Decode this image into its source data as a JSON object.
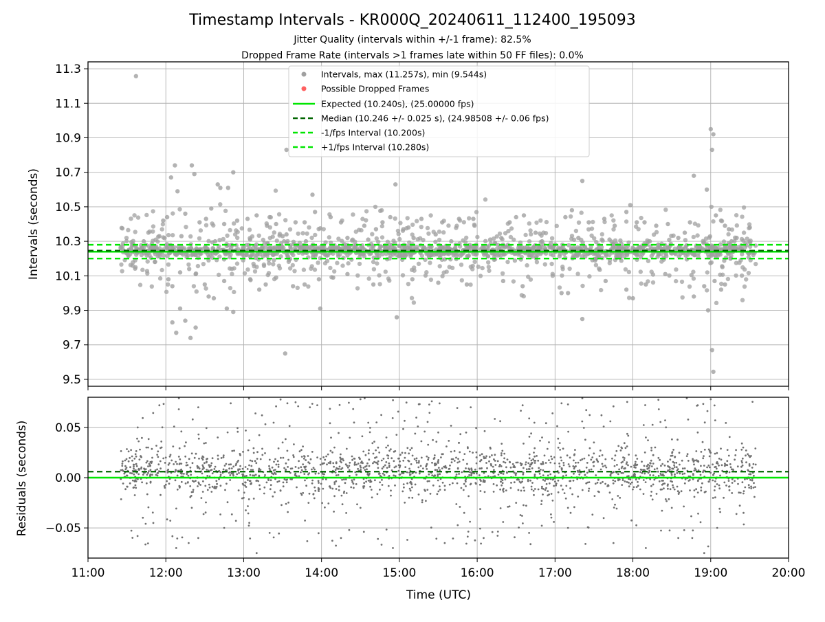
{
  "chart_data": [
    {
      "type": "scatter",
      "title": "Timestamp Intervals - KR000Q_20240611_112400_195093",
      "subtitle_lines": [
        "Jitter Quality (intervals within +/-1 frame): 82.5%",
        "Dropped Frame Rate (intervals >1 frames late within 50 FF files): 0.0%"
      ],
      "xlabel": "",
      "ylabel": "Intervals (seconds)",
      "x_axis": {
        "min": "11:00",
        "max": "20:00",
        "ticks": [
          "11:00",
          "12:00",
          "13:00",
          "14:00",
          "15:00",
          "16:00",
          "17:00",
          "18:00",
          "19:00",
          "20:00"
        ]
      },
      "ylim": [
        9.46,
        11.34
      ],
      "yticks": [
        "9.5",
        "9.7",
        "9.9",
        "10.1",
        "10.3",
        "10.5",
        "10.7",
        "10.9",
        "11.1",
        "11.3"
      ],
      "grid": true,
      "legend_position": "top-center",
      "legend": [
        {
          "label": "Intervals, max (11.257s), min (9.544s)",
          "kind": "marker",
          "color": "#a0a0a0"
        },
        {
          "label": "Possible Dropped Frames",
          "kind": "marker",
          "color": "#ff6060"
        },
        {
          "label": "Expected (10.240s), (25.00000 fps)",
          "kind": "solid",
          "color": "#00e600"
        },
        {
          "label": "Median (10.246 +/- 0.025 s), (24.98508 +/- 0.06 fps)",
          "kind": "dashed",
          "color": "#006400"
        },
        {
          "label": "-1/fps Interval (10.200s)",
          "kind": "dashed",
          "color": "#00e600"
        },
        {
          "label": "+1/fps Interval (10.280s)",
          "kind": "dashed",
          "color": "#00e600"
        }
      ],
      "reference_lines": {
        "expected": 10.24,
        "median": 10.246,
        "minus_one_fps": 10.2,
        "plus_one_fps": 10.28
      },
      "series": [
        {
          "name": "Intervals, max (11.257s), min (9.544s)",
          "color": "#a0a0a0",
          "points": [
            [
              "11:37",
              11.257
            ],
            [
              "12:04",
              10.67
            ],
            [
              "12:07",
              10.74
            ],
            [
              "12:09",
              10.59
            ],
            [
              "12:15",
              10.46
            ],
            [
              "12:20",
              10.74
            ],
            [
              "12:22",
              10.69
            ],
            [
              "12:35",
              10.49
            ],
            [
              "12:40",
              10.63
            ],
            [
              "12:42",
              10.61
            ],
            [
              "12:48",
              10.61
            ],
            [
              "12:52",
              10.7
            ],
            [
              "12:31",
              10.43
            ],
            [
              "12:26",
              10.41
            ],
            [
              "12:01",
              10.44
            ],
            [
              "11:58",
              10.42
            ],
            [
              "12:45",
              10.4
            ],
            [
              "12:55",
              10.42
            ],
            [
              "13:03",
              10.43
            ],
            [
              "13:10",
              10.45
            ],
            [
              "13:20",
              10.44
            ],
            [
              "13:18",
              10.39
            ],
            [
              "13:25",
              10.4
            ],
            [
              "13:33",
              10.34
            ],
            [
              "13:40",
              10.41
            ],
            [
              "13:47",
              10.41
            ],
            [
              "13:55",
              10.47
            ],
            [
              "13:53",
              10.57
            ],
            [
              "14:07",
              10.44
            ],
            [
              "14:15",
              10.41
            ],
            [
              "14:33",
              10.39
            ],
            [
              "14:42",
              10.37
            ],
            [
              "14:47",
              10.41
            ],
            [
              "14:53",
              10.44
            ],
            [
              "14:57",
              10.63
            ],
            [
              "15:07",
              10.38
            ],
            [
              "15:17",
              10.43
            ],
            [
              "15:28",
              10.34
            ],
            [
              "15:33",
              10.41
            ],
            [
              "15:46",
              10.43
            ],
            [
              "15:57",
              10.43
            ],
            [
              "16:25",
              10.41
            ],
            [
              "16:30",
              10.44
            ],
            [
              "16:36",
              10.45
            ],
            [
              "16:45",
              10.35
            ],
            [
              "17:08",
              10.44
            ],
            [
              "17:13",
              10.48
            ],
            [
              "17:21",
              10.65
            ],
            [
              "17:26",
              10.41
            ],
            [
              "17:38",
              10.43
            ],
            [
              "17:46",
              10.39
            ],
            [
              "17:55",
              10.47
            ],
            [
              "17:58",
              10.51
            ],
            [
              "18:03",
              10.41
            ],
            [
              "18:09",
              10.41
            ],
            [
              "18:18",
              10.39
            ],
            [
              "18:27",
              10.4
            ],
            [
              "18:40",
              10.35
            ],
            [
              "18:44",
              10.41
            ],
            [
              "18:47",
              10.68
            ],
            [
              "18:57",
              10.6
            ],
            [
              "19:00",
              10.95
            ],
            [
              "19:02",
              10.92
            ],
            [
              "19:01",
              10.83
            ],
            [
              "19:04",
              10.45
            ],
            [
              "19:08",
              10.42
            ],
            [
              "19:11",
              10.39
            ],
            [
              "19:14",
              10.37
            ],
            [
              "19:20",
              10.32
            ],
            [
              "11:43",
              10.3
            ],
            [
              "11:55",
              10.33
            ],
            [
              "12:12",
              10.33
            ],
            [
              "12:38",
              10.3
            ],
            [
              "13:05",
              10.31
            ],
            [
              "13:30",
              10.33
            ],
            [
              "13:48",
              10.3
            ],
            [
              "14:20",
              10.32
            ],
            [
              "14:36",
              10.31
            ],
            [
              "15:11",
              10.32
            ],
            [
              "15:40",
              10.3
            ],
            [
              "16:10",
              10.31
            ],
            [
              "16:50",
              10.3
            ],
            [
              "17:18",
              10.32
            ],
            [
              "17:42",
              10.31
            ],
            [
              "18:13",
              10.3
            ],
            [
              "18:35",
              10.32
            ],
            [
              "19:16",
              10.3
            ],
            [
              "12:02",
              10.08
            ],
            [
              "12:05",
              10.04
            ],
            [
              "12:11",
              10.12
            ],
            [
              "12:18",
              10.14
            ],
            [
              "12:23",
              10.11
            ],
            [
              "12:30",
              10.05
            ],
            [
              "12:33",
              9.98
            ],
            [
              "12:37",
              9.97
            ],
            [
              "12:45",
              10.07
            ],
            [
              "12:52",
              9.89
            ],
            [
              "12:47",
              9.91
            ],
            [
              "13:05",
              10.08
            ],
            [
              "13:12",
              10.02
            ],
            [
              "13:17",
              10.05
            ],
            [
              "13:25",
              10.09
            ],
            [
              "13:38",
              10.04
            ],
            [
              "13:47",
              10.05
            ],
            [
              "13:58",
              10.08
            ],
            [
              "14:09",
              10.09
            ],
            [
              "14:20",
              10.11
            ],
            [
              "14:40",
              10.05
            ],
            [
              "15:10",
              10.08
            ],
            [
              "15:30",
              10.06
            ],
            [
              "15:52",
              10.05
            ],
            [
              "16:20",
              10.07
            ],
            [
              "16:35",
              10.04
            ],
            [
              "17:05",
              10.0
            ],
            [
              "17:10",
              10.0
            ],
            [
              "17:39",
              10.07
            ],
            [
              "17:55",
              10.02
            ],
            [
              "18:00",
              9.97
            ],
            [
              "18:10",
              10.05
            ],
            [
              "18:25",
              10.11
            ],
            [
              "18:47",
              9.98
            ],
            [
              "18:55",
              10.04
            ],
            [
              "19:03",
              10.07
            ],
            [
              "19:08",
              10.02
            ],
            [
              "19:11",
              10.05
            ],
            [
              "12:05",
              9.83
            ],
            [
              "12:11",
              9.91
            ],
            [
              "12:15",
              9.84
            ],
            [
              "12:19",
              9.74
            ],
            [
              "12:23",
              9.8
            ],
            [
              "12:08",
              9.77
            ],
            [
              "13:59",
              9.91
            ],
            [
              "14:58",
              9.86
            ],
            [
              "17:21",
              9.85
            ],
            [
              "18:58",
              9.9
            ],
            [
              "19:01",
              9.67
            ],
            [
              "19:02",
              9.544
            ],
            [
              "13:32",
              9.65
            ],
            [
              "13:33",
              10.83
            ]
          ],
          "dense_band": {
            "x_start": "11:25",
            "x_end": "19:35",
            "y_center": 10.246,
            "y_spread": 0.035
          }
        }
      ]
    },
    {
      "type": "scatter",
      "title": "",
      "xlabel": "Time (UTC)",
      "ylabel": "Residuals (seconds)",
      "x_axis": {
        "min": "11:00",
        "max": "20:00",
        "ticks": [
          "11:00",
          "12:00",
          "13:00",
          "14:00",
          "15:00",
          "16:00",
          "17:00",
          "18:00",
          "19:00",
          "20:00"
        ]
      },
      "ylim": [
        -0.08,
        0.08
      ],
      "yticks": [
        "−0.05",
        "0.00",
        "0.05"
      ],
      "grid": true,
      "reference_lines": {
        "expected": 0.0,
        "median": 0.006
      },
      "series": [
        {
          "name": "",
          "color": "#707070",
          "points": [
            [
              "11:55",
              0.072
            ],
            [
              "12:10",
              0.068
            ],
            [
              "12:25",
              0.07
            ],
            [
              "12:50",
              0.074
            ],
            [
              "13:25",
              0.071
            ],
            [
              "13:40",
              0.075
            ],
            [
              "14:30",
              0.078
            ],
            [
              "15:15",
              0.073
            ],
            [
              "15:25",
              0.076
            ],
            [
              "15:55",
              0.07
            ],
            [
              "16:35",
              0.072
            ],
            [
              "17:05",
              0.074
            ],
            [
              "17:45",
              0.071
            ],
            [
              "18:20",
              0.068
            ],
            [
              "18:50",
              0.072
            ],
            [
              "19:00",
              0.078
            ],
            [
              "12:08",
              -0.07
            ],
            [
              "12:25",
              -0.06
            ],
            [
              "12:45",
              -0.05
            ],
            [
              "13:10",
              -0.075
            ],
            [
              "13:20",
              -0.055
            ],
            [
              "14:15",
              -0.06
            ],
            [
              "14:55",
              -0.07
            ],
            [
              "15:35",
              -0.065
            ],
            [
              "16:05",
              -0.06
            ],
            [
              "16:40",
              -0.055
            ],
            [
              "17:10",
              -0.05
            ],
            [
              "17:45",
              -0.065
            ],
            [
              "18:10",
              -0.07
            ],
            [
              "18:35",
              -0.06
            ],
            [
              "18:55",
              -0.075
            ],
            [
              "19:05",
              -0.05
            ],
            [
              "11:35",
              -0.01
            ],
            [
              "11:45",
              0.03
            ],
            [
              "12:00",
              0.02
            ],
            [
              "12:20",
              -0.03
            ],
            [
              "12:40",
              0.04
            ],
            [
              "13:00",
              -0.02
            ],
            [
              "13:30",
              0.035
            ],
            [
              "13:50",
              -0.025
            ],
            [
              "14:10",
              0.03
            ],
            [
              "14:30",
              -0.03
            ],
            [
              "14:50",
              0.04
            ],
            [
              "15:10",
              -0.02
            ],
            [
              "15:30",
              0.045
            ],
            [
              "15:50",
              -0.035
            ],
            [
              "16:10",
              0.03
            ],
            [
              "16:30",
              -0.025
            ],
            [
              "16:50",
              0.04
            ],
            [
              "17:10",
              -0.03
            ],
            [
              "17:30",
              0.035
            ],
            [
              "17:50",
              -0.02
            ],
            [
              "18:10",
              0.04
            ],
            [
              "18:30",
              -0.03
            ],
            [
              "18:50",
              0.045
            ],
            [
              "19:10",
              -0.02
            ],
            [
              "19:25",
              0.03
            ],
            [
              "19:32",
              0.01
            ]
          ],
          "dense_band": {
            "x_start": "11:25",
            "x_end": "19:35",
            "y_center": 0.006,
            "y_spread": 0.022
          }
        }
      ]
    }
  ]
}
